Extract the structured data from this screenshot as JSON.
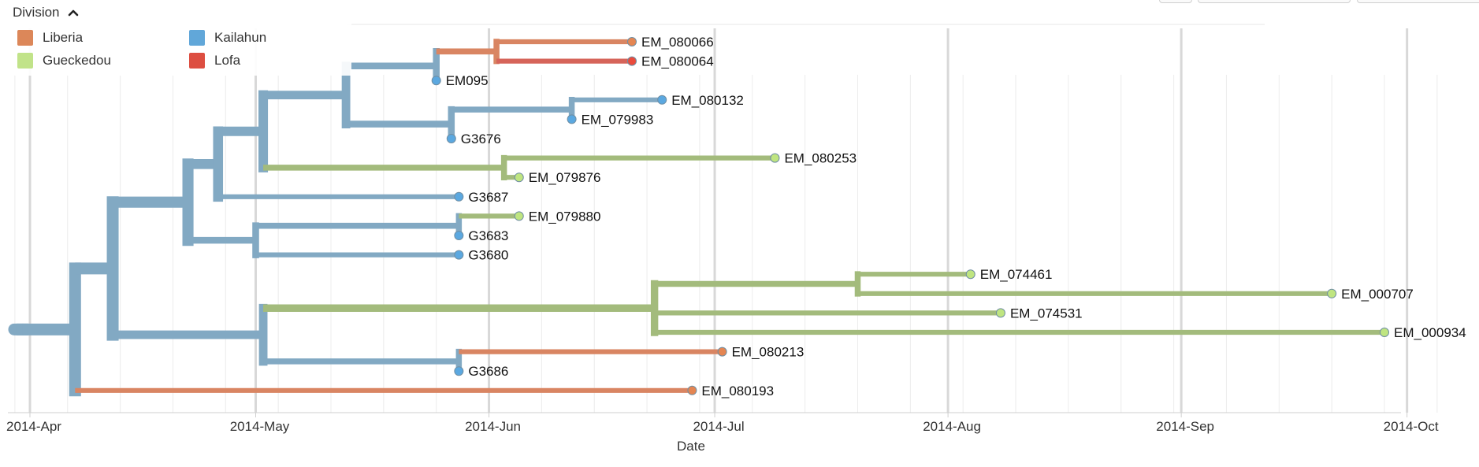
{
  "legend": {
    "title": "Division",
    "toggle_icon": "chevron-up-icon",
    "items": [
      {
        "label": "Liberia",
        "color": "#e48552"
      },
      {
        "label": "Kailahun",
        "color": "#5ba8e0"
      },
      {
        "label": "Gueckedou",
        "color": "#bfe580"
      },
      {
        "label": "Lofa",
        "color": "#ea4b3c"
      }
    ]
  },
  "chart_data": {
    "type": "phylogenetic-tree",
    "xlabel": "Date",
    "ylabel": "",
    "xlim": [
      "2014-03-30",
      "2014-10-05"
    ],
    "x_ticks": [
      "2014-Apr",
      "2014-May",
      "2014-Jun",
      "2014-Jul",
      "2014-Aug",
      "2014-Sep",
      "2014-Oct"
    ],
    "x_tick_dates": [
      "2014-04-01",
      "2014-05-01",
      "2014-06-01",
      "2014-07-01",
      "2014-08-01",
      "2014-09-01",
      "2014-10-01"
    ],
    "grid": true,
    "legend_position": "top-left",
    "tips": [
      {
        "name": "EM_080066",
        "date": "2014-06-20",
        "division": "Liberia"
      },
      {
        "name": "EM_080064",
        "date": "2014-06-20",
        "division": "Lofa"
      },
      {
        "name": "EM095",
        "date": "2014-05-25",
        "division": "Kailahun"
      },
      {
        "name": "EM_080132",
        "date": "2014-06-24",
        "division": "Kailahun"
      },
      {
        "name": "EM_079983",
        "date": "2014-06-12",
        "division": "Kailahun"
      },
      {
        "name": "G3676",
        "date": "2014-05-27",
        "division": "Kailahun"
      },
      {
        "name": "EM_080253",
        "date": "2014-07-09",
        "division": "Gueckedou"
      },
      {
        "name": "EM_079876",
        "date": "2014-06-05",
        "division": "Gueckedou"
      },
      {
        "name": "G3687",
        "date": "2014-05-28",
        "division": "Kailahun"
      },
      {
        "name": "EM_079880",
        "date": "2014-06-05",
        "division": "Gueckedou"
      },
      {
        "name": "G3683",
        "date": "2014-05-28",
        "division": "Kailahun"
      },
      {
        "name": "G3680",
        "date": "2014-05-28",
        "division": "Kailahun"
      },
      {
        "name": "EM_074461",
        "date": "2014-08-04",
        "division": "Gueckedou"
      },
      {
        "name": "EM_000707",
        "date": "2014-09-21",
        "division": "Gueckedou"
      },
      {
        "name": "EM_074531",
        "date": "2014-08-08",
        "division": "Gueckedou"
      },
      {
        "name": "EM_000934",
        "date": "2014-09-28",
        "division": "Gueckedou"
      },
      {
        "name": "EM_080213",
        "date": "2014-07-02",
        "division": "Liberia"
      },
      {
        "name": "G3686",
        "date": "2014-05-28",
        "division": "Kailahun"
      },
      {
        "name": "EM_080193",
        "date": "2014-06-28",
        "division": "Liberia"
      }
    ],
    "tree": {
      "date": "2014-03-31",
      "division": "Kailahun",
      "children": [
        {
          "date": "2014-04-07",
          "division": "Kailahun",
          "children": [
            {
              "date": "2014-04-12",
              "division": "Kailahun",
              "children": [
                {
                  "date": "2014-04-22",
                  "division": "Kailahun",
                  "children": [
                    {
                      "date": "2014-04-26",
                      "division": "Kailahun",
                      "children": [
                        {
                          "date": "2014-05-02",
                          "division": "Kailahun",
                          "children": [
                            {
                              "date": "2014-05-13",
                              "division": "Kailahun",
                              "children": [
                                {
                                  "date": "2014-05-25",
                                  "division": "Kailahun",
                                  "children": [
                                    {
                                      "date": "2014-06-02",
                                      "division": "Liberia",
                                      "children": [
                                        {
                                          "tip": "EM_080066"
                                        },
                                        {
                                          "tip": "EM_080064"
                                        }
                                      ]
                                    },
                                    {
                                      "tip": "EM095"
                                    }
                                  ]
                                },
                                {
                                  "date": "2014-05-27",
                                  "division": "Kailahun",
                                  "children": [
                                    {
                                      "date": "2014-06-12",
                                      "division": "Kailahun",
                                      "children": [
                                        {
                                          "tip": "EM_080132"
                                        },
                                        {
                                          "tip": "EM_079983"
                                        }
                                      ]
                                    },
                                    {
                                      "tip": "G3676"
                                    }
                                  ]
                                }
                              ]
                            },
                            {
                              "date": "2014-06-03",
                              "division": "Gueckedou",
                              "children": [
                                {
                                  "tip": "EM_080253"
                                },
                                {
                                  "tip": "EM_079876"
                                }
                              ]
                            }
                          ]
                        },
                        {
                          "tip": "G3687"
                        }
                      ]
                    },
                    {
                      "date": "2014-05-01",
                      "division": "Kailahun",
                      "children": [
                        {
                          "date": "2014-05-28",
                          "division": "Kailahun",
                          "children": [
                            {
                              "tip": "EM_079880"
                            },
                            {
                              "tip": "G3683"
                            }
                          ]
                        },
                        {
                          "tip": "G3680"
                        }
                      ]
                    }
                  ]
                },
                {
                  "date": "2014-05-02",
                  "division": "Kailahun",
                  "children": [
                    {
                      "date": "2014-06-23",
                      "division": "Gueckedou",
                      "children": [
                        {
                          "date": "2014-07-20",
                          "division": "Gueckedou",
                          "children": [
                            {
                              "tip": "EM_074461"
                            },
                            {
                              "tip": "EM_000707"
                            }
                          ]
                        },
                        {
                          "tip": "EM_074531"
                        },
                        {
                          "tip": "EM_000934"
                        }
                      ]
                    },
                    {
                      "date": "2014-05-28",
                      "division": "Kailahun",
                      "children": [
                        {
                          "tip": "EM_080213"
                        },
                        {
                          "tip": "G3686"
                        }
                      ]
                    }
                  ]
                }
              ]
            },
            {
              "tip": "EM_080193"
            }
          ]
        }
      ]
    }
  }
}
